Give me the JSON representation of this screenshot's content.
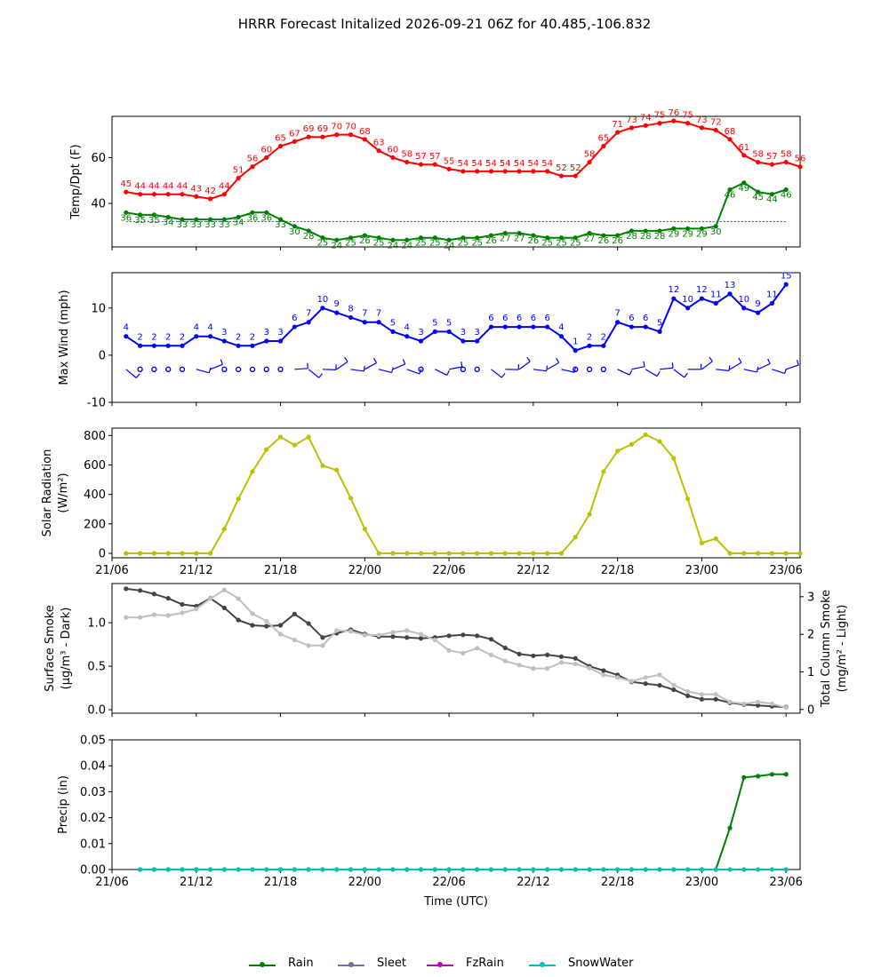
{
  "title": "HRRR Forecast Initalized 2026-09-21 06Z for 40.485,-106.832",
  "colors": {
    "temp": "#ff0000",
    "dewpoint": "#008000",
    "freezing_line": "#0000ff",
    "wind": "#0000ff",
    "solar": "#bfbf00",
    "smoke_surface": "#444444",
    "smoke_column": "#c0c0c0",
    "rain": "#008000",
    "sleet": "#8068a0",
    "fzrain": "#c000c0",
    "snowwater": "#00bfbf"
  },
  "legend": [
    {
      "label": "Rain",
      "color_key": "rain"
    },
    {
      "label": "Sleet",
      "color_key": "sleet"
    },
    {
      "label": "FzRain",
      "color_key": "fzrain"
    },
    {
      "label": "SnowWater",
      "color_key": "snowwater"
    }
  ],
  "chart_data": [
    {
      "type": "line",
      "panel": "temperature",
      "ylabel": "Temp/Dpt (F)",
      "ylim": [
        21,
        78
      ],
      "yticks": [
        40,
        60
      ],
      "x_start_hour": 1,
      "x_end_hour": 49,
      "freezing_line": 32,
      "series": [
        {
          "key": "temp",
          "values": [
            45,
            44,
            44,
            44,
            44,
            43,
            42,
            44,
            51,
            56,
            60,
            65,
            67,
            69,
            69,
            70,
            70,
            68,
            63,
            60,
            58,
            57,
            57,
            55,
            54,
            54,
            54,
            54,
            54,
            54,
            54,
            52,
            52,
            58,
            65,
            71,
            73,
            74,
            75,
            76,
            75,
            73,
            72,
            68,
            61,
            58,
            57,
            58,
            56
          ]
        },
        {
          "key": "dewpoint",
          "values": [
            36,
            35,
            35,
            34,
            33,
            33,
            33,
            33,
            34,
            36,
            36,
            33,
            30,
            28,
            25,
            24,
            25,
            26,
            25,
            24,
            24,
            25,
            25,
            24,
            25,
            25,
            26,
            27,
            27,
            26,
            25,
            25,
            25,
            27,
            26,
            26,
            28,
            28,
            28,
            29,
            29,
            29,
            30,
            46,
            49,
            45,
            44,
            46
          ]
        }
      ]
    },
    {
      "type": "line",
      "panel": "wind",
      "ylabel": "Max Wind (mph)",
      "ylim": [
        -10,
        17.5
      ],
      "yticks": [
        -10,
        0,
        10
      ],
      "x_start_hour": 1,
      "series": [
        {
          "key": "wind",
          "values": [
            4,
            2,
            2,
            2,
            2,
            4,
            4,
            3,
            2,
            2,
            3,
            3,
            6,
            7,
            10,
            9,
            8,
            7,
            7,
            5,
            4,
            3,
            5,
            5,
            3,
            3,
            6,
            6,
            6,
            6,
            6,
            4,
            1,
            2,
            2,
            7,
            6,
            6,
            5,
            12,
            10,
            12,
            11,
            13,
            10,
            9,
            11,
            15
          ]
        }
      ],
      "barbs_y": -3
    },
    {
      "type": "line",
      "panel": "solar",
      "ylabel": "Solar Radiation (W/m²)",
      "ylim": [
        -30,
        850
      ],
      "yticks": [
        0,
        200,
        400,
        600,
        800
      ],
      "x_start_hour": 1,
      "series": [
        {
          "key": "solar",
          "values": [
            0,
            0,
            0,
            0,
            0,
            0,
            0,
            165,
            370,
            555,
            705,
            790,
            735,
            790,
            595,
            565,
            375,
            165,
            0,
            0,
            0,
            0,
            0,
            0,
            0,
            0,
            0,
            0,
            0,
            0,
            0,
            0,
            110,
            265,
            555,
            695,
            740,
            805,
            760,
            645,
            370,
            70,
            100,
            0,
            0,
            0,
            0,
            0,
            0
          ]
        }
      ]
    },
    {
      "type": "line",
      "panel": "smoke",
      "ylabel": "Surface Smoke (µg/m³ - Dark)",
      "ylabel_right": "Total Column Smoke (mg/m² - Light)",
      "ylim": [
        -0.04,
        1.45
      ],
      "ylim_right": [
        -0.1,
        3.35
      ],
      "yticks": [
        0.0,
        0.5,
        1.0
      ],
      "yticks_right": [
        0,
        1,
        2,
        3
      ],
      "x_start_hour": 1,
      "series": [
        {
          "key": "smoke_surface",
          "axis": "left",
          "values": [
            1.39,
            1.37,
            1.33,
            1.28,
            1.21,
            1.19,
            1.28,
            1.17,
            1.03,
            0.97,
            0.96,
            0.97,
            1.1,
            0.99,
            0.83,
            0.88,
            0.92,
            0.87,
            0.84,
            0.84,
            0.83,
            0.82,
            0.83,
            0.85,
            0.86,
            0.85,
            0.81,
            0.71,
            0.64,
            0.62,
            0.63,
            0.61,
            0.59,
            0.5,
            0.45,
            0.4,
            0.32,
            0.3,
            0.28,
            0.23,
            0.16,
            0.12,
            0.12,
            0.08,
            0.06,
            0.05,
            0.04,
            0.03
          ]
        },
        {
          "key": "smoke_column",
          "axis": "right",
          "values": [
            2.45,
            2.45,
            2.52,
            2.5,
            2.57,
            2.67,
            2.95,
            3.18,
            2.95,
            2.55,
            2.35,
            2.0,
            1.85,
            1.7,
            1.7,
            2.1,
            2.08,
            1.98,
            1.98,
            2.05,
            2.1,
            2.0,
            1.85,
            1.57,
            1.5,
            1.63,
            1.45,
            1.29,
            1.18,
            1.09,
            1.09,
            1.25,
            1.21,
            1.1,
            0.92,
            0.85,
            0.75,
            0.85,
            0.92,
            0.65,
            0.48,
            0.4,
            0.4,
            0.2,
            0.15,
            0.2,
            0.15,
            0.05
          ]
        }
      ]
    },
    {
      "type": "line",
      "panel": "precip",
      "ylabel": "Precip (in)",
      "xlabel": "Time (UTC)",
      "ylim": [
        0,
        0.05
      ],
      "yticks": [
        0.0,
        0.01,
        0.02,
        0.03,
        0.04,
        0.05
      ],
      "x_start_hour": 2,
      "series": [
        {
          "key": "rain",
          "name": "Rain",
          "values": [
            0,
            0,
            0,
            0,
            0,
            0,
            0,
            0,
            0,
            0,
            0,
            0,
            0,
            0,
            0,
            0,
            0,
            0,
            0,
            0,
            0,
            0,
            0,
            0,
            0,
            0,
            0,
            0,
            0,
            0,
            0,
            0,
            0,
            0,
            0,
            0,
            0,
            0,
            0,
            0,
            0,
            0,
            0.016,
            0.0355,
            0.036,
            0.0367,
            0.0367
          ]
        },
        {
          "key": "snowwater",
          "name": "SnowWater",
          "values": [
            0,
            0,
            0,
            0,
            0,
            0,
            0,
            0,
            0,
            0,
            0,
            0,
            0,
            0,
            0,
            0,
            0,
            0,
            0,
            0,
            0,
            0,
            0,
            0,
            0,
            0,
            0,
            0,
            0,
            0,
            0,
            0,
            0,
            0,
            0,
            0,
            0,
            0,
            0,
            0,
            0,
            0,
            0,
            0,
            0,
            0,
            0
          ]
        }
      ]
    }
  ],
  "x_axis": {
    "xlim_hours": [
      0,
      49
    ],
    "ticks": [
      {
        "hour": 0,
        "label": "21/06"
      },
      {
        "hour": 6,
        "label": "21/12"
      },
      {
        "hour": 12,
        "label": "21/18"
      },
      {
        "hour": 18,
        "label": "22/00"
      },
      {
        "hour": 24,
        "label": "22/06"
      },
      {
        "hour": 30,
        "label": "22/12"
      },
      {
        "hour": 36,
        "label": "22/18"
      },
      {
        "hour": 42,
        "label": "23/00"
      },
      {
        "hour": 48,
        "label": "23/06"
      }
    ]
  }
}
